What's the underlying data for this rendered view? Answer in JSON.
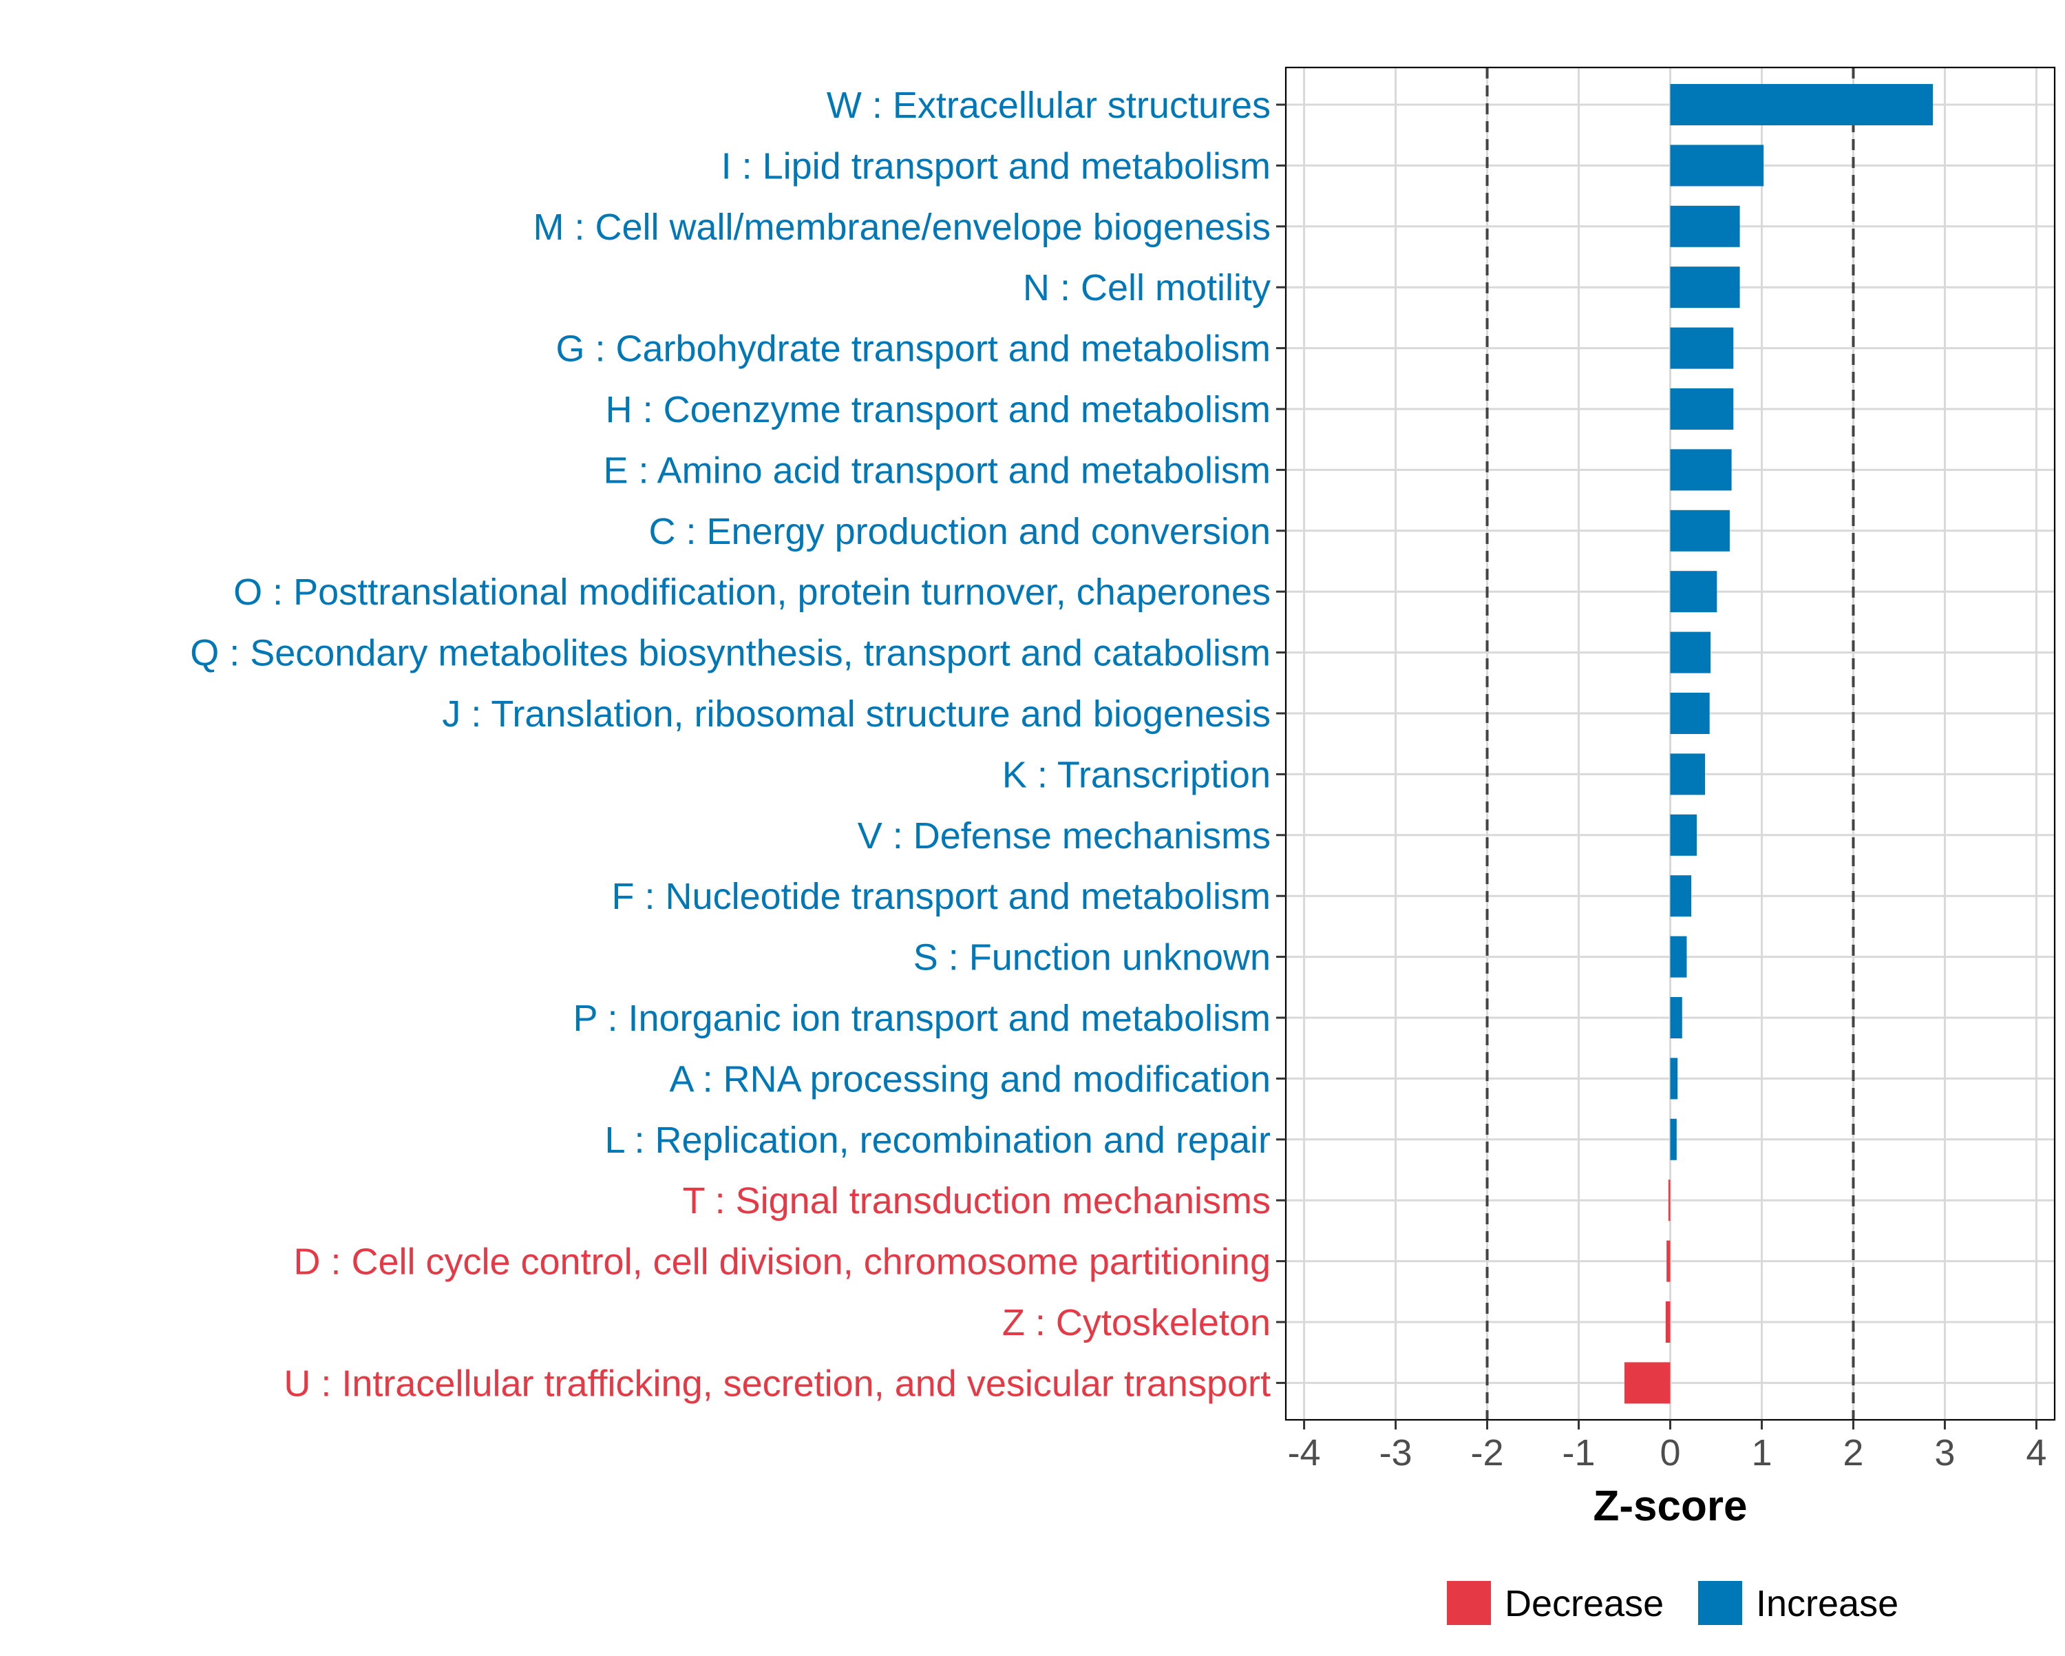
{
  "chart_data": {
    "type": "bar",
    "orientation": "horizontal",
    "categories": [
      "W : Extracellular structures",
      "I : Lipid transport and metabolism",
      "M : Cell wall/membrane/envelope biogenesis",
      "N : Cell motility",
      "G : Carbohydrate transport and metabolism",
      "H : Coenzyme transport and metabolism",
      "E : Amino acid transport and metabolism",
      "C : Energy production and conversion",
      "O : Posttranslational modification, protein turnover, chaperones",
      "Q : Secondary metabolites biosynthesis, transport and catabolism",
      "J : Translation, ribosomal structure and biogenesis",
      "K : Transcription",
      "V : Defense mechanisms",
      "F : Nucleotide transport and metabolism",
      "S : Function unknown",
      "P : Inorganic ion transport and metabolism",
      "A : RNA processing and modification",
      "L : Replication, recombination and repair",
      "T : Signal transduction mechanisms",
      "D : Cell cycle control, cell division, chromosome partitioning",
      "Z : Cytoskeleton",
      "U : Intracellular trafficking, secretion, and vesicular transport"
    ],
    "values": [
      2.87,
      1.02,
      0.76,
      0.76,
      0.69,
      0.69,
      0.67,
      0.65,
      0.51,
      0.44,
      0.43,
      0.38,
      0.29,
      0.23,
      0.18,
      0.13,
      0.08,
      0.07,
      -0.02,
      -0.04,
      -0.05,
      -0.5
    ],
    "groups": [
      "Increase",
      "Increase",
      "Increase",
      "Increase",
      "Increase",
      "Increase",
      "Increase",
      "Increase",
      "Increase",
      "Increase",
      "Increase",
      "Increase",
      "Increase",
      "Increase",
      "Increase",
      "Increase",
      "Increase",
      "Increase",
      "Decrease",
      "Decrease",
      "Decrease",
      "Decrease"
    ],
    "title": "",
    "xlabel": "Z-score",
    "ylabel": "",
    "xlim": [
      -4.2,
      4.2
    ],
    "xticks": [
      -4,
      -3,
      -2,
      -1,
      0,
      1,
      2,
      3,
      4
    ],
    "threshold_lines": [
      -2,
      2
    ],
    "grid": true,
    "legend": {
      "position": "bottom",
      "items": [
        {
          "label": "Decrease",
          "color": "#E63946"
        },
        {
          "label": "Increase",
          "color": "#0077B6"
        }
      ]
    },
    "colors": {
      "Increase": "#0077B6",
      "Decrease": "#E63946"
    }
  }
}
